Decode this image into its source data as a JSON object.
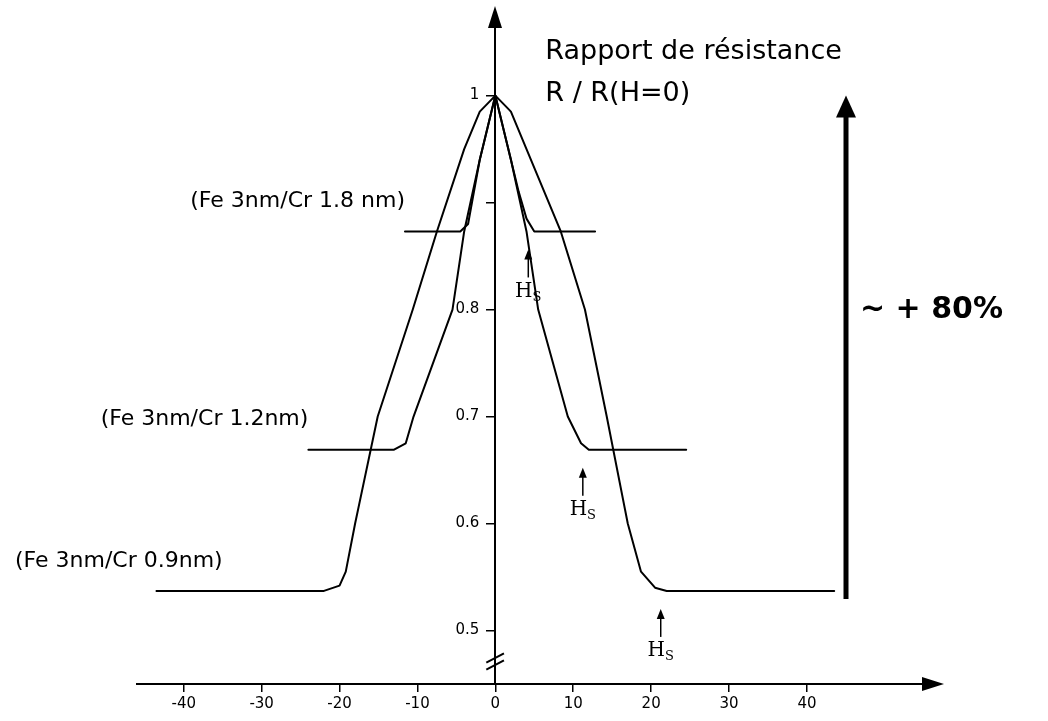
{
  "chart_data": {
    "type": "line",
    "ylabel": "Rapport de résistance\nR / R(H=0)",
    "xlim": [
      -46,
      54
    ],
    "ylim": [
      0.45,
      1.08
    ],
    "xticks": [
      -40,
      -30,
      -20,
      -10,
      0,
      10,
      20,
      30,
      40
    ],
    "yticks": [
      0.5,
      0.6,
      0.7,
      0.8,
      {
        "value": 0.9,
        "label": null
      },
      1
    ],
    "legend": false,
    "marker": "none",
    "line_style": "solid",
    "series": [
      {
        "name": "(Fe 3nm/Cr 1.8 nm)",
        "color": "#000000",
        "x": [
          -11.6,
          -4.5,
          -3.5,
          -3,
          -2,
          -1,
          0,
          1,
          2,
          3,
          4,
          5,
          12.8
        ],
        "values": [
          0.873,
          0.873,
          0.88,
          0.9,
          0.94,
          0.97,
          1,
          0.97,
          0.94,
          0.91,
          0.885,
          0.873,
          0.873
        ]
      },
      {
        "name": "(Fe 3nm/Cr 1.2nm)",
        "color": "#000000",
        "x": [
          -24,
          -13,
          -11.5,
          -10.5,
          -5.5,
          -4,
          -2,
          0,
          2,
          4,
          5.5,
          9.3,
          11,
          12,
          24.5
        ],
        "values": [
          0.669,
          0.669,
          0.675,
          0.7,
          0.8,
          0.873,
          0.94,
          1,
          0.94,
          0.873,
          0.8,
          0.7,
          0.675,
          0.669,
          0.669
        ]
      },
      {
        "name": "(Fe 3nm/Cr 0.9nm)",
        "color": "#000000",
        "x": [
          -43.5,
          -22,
          -20,
          -19.2,
          -18,
          -15.1,
          -10.6,
          -7.5,
          -4,
          -2,
          0,
          2,
          4,
          8.4,
          11.5,
          14.3,
          17,
          18.7,
          20.5,
          22,
          43.5
        ],
        "values": [
          0.537,
          0.537,
          0.542,
          0.555,
          0.6,
          0.7,
          0.8,
          0.873,
          0.95,
          0.985,
          1,
          0.985,
          0.95,
          0.873,
          0.8,
          0.7,
          0.6,
          0.555,
          0.54,
          0.537,
          0.537
        ]
      }
    ],
    "annotations": [
      "H$_{S}$",
      "H$_{S}$",
      "H$_{S}$",
      "~ + 80%"
    ]
  }
}
